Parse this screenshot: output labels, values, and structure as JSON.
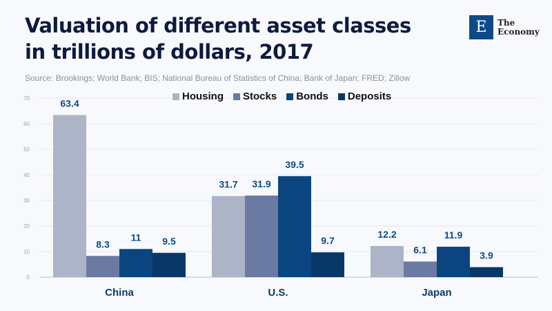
{
  "header": {
    "title": "Valuation of different asset classes in trillions of dollars, 2017",
    "source": "Source: Brookings; World Bank; BIS; National Bureau of Statistics of China; Bank of Japan; FRED; Zillow"
  },
  "logo": {
    "letter": "E",
    "line1": "The",
    "line2": "Economy"
  },
  "chart_data": {
    "type": "bar",
    "title": "Valuation of different asset classes in trillions of dollars, 2017",
    "categories": [
      "China",
      "U.S.",
      "Japan"
    ],
    "series": [
      {
        "name": "Housing",
        "color": "#adb4c8",
        "values": [
          63.4,
          31.7,
          12.2
        ]
      },
      {
        "name": "Stocks",
        "color": "#6a7aa2",
        "values": [
          8.3,
          31.9,
          6.1
        ]
      },
      {
        "name": "Bonds",
        "color": "#0b4580",
        "values": [
          11,
          39.5,
          11.9
        ]
      },
      {
        "name": "Deposits",
        "color": "#093767",
        "values": [
          9.5,
          9.7,
          3.9
        ]
      }
    ],
    "yticks": [
      0,
      10,
      20,
      30,
      40,
      50,
      60,
      70
    ],
    "ylim": [
      0,
      70
    ],
    "grid": true,
    "legend": "top-center",
    "label_color": "#0e4a87"
  }
}
